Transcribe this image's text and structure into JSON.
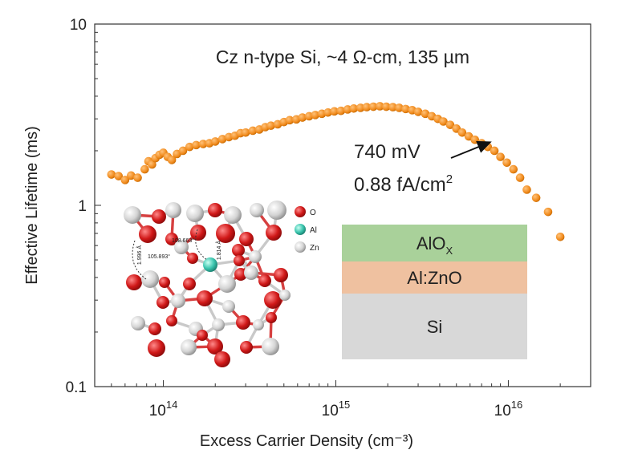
{
  "chart_data": {
    "type": "scatter",
    "title": "Cz n-type Si, ~4 Ω-cm, 135 µm",
    "xlabel": "Excess Carrier Density (cm⁻³)",
    "ylabel": "Effective Lifetime (ms)",
    "x_scale": "log",
    "y_scale": "log",
    "xlim": [
      40000000000000.0,
      3e+16
    ],
    "ylim": [
      0.1,
      10
    ],
    "x_ticks": [
      {
        "value": 100000000000000.0,
        "base": "10",
        "exp": "14"
      },
      {
        "value": 1000000000000000.0,
        "base": "10",
        "exp": "15"
      },
      {
        "value": 1e+16,
        "base": "10",
        "exp": "16"
      }
    ],
    "y_ticks": [
      {
        "value": 0.1,
        "label": "0.1"
      },
      {
        "value": 1,
        "label": "1"
      },
      {
        "value": 10,
        "label": "10"
      }
    ],
    "marker_color": "#f08a1c",
    "annotation": {
      "line1": "740 mV",
      "line2": "0.88 fA/cm",
      "line2_sup": "2",
      "arrow_target": [
        8200000000000000.0,
        2.3
      ]
    },
    "series": [
      {
        "x": [
          50000000000000.0,
          55000000000000.0,
          60000000000000.0,
          65000000000000.0,
          71000000000000.0,
          78000000000000.0,
          82000000000000.0,
          86000000000000.0,
          90000000000000.0,
          95000000000000.0,
          100000000000000.0,
          106000000000000.0,
          112000000000000.0,
          120000000000000.0,
          130000000000000.0,
          142000000000000.0,
          155000000000000.0,
          170000000000000.0,
          185000000000000.0,
          200000000000000.0,
          220000000000000.0,
          240000000000000.0,
          260000000000000.0,
          280000000000000.0,
          300000000000000.0,
          330000000000000.0,
          360000000000000.0,
          390000000000000.0,
          420000000000000.0,
          460000000000000.0,
          500000000000000.0,
          540000000000000.0,
          590000000000000.0,
          640000000000000.0,
          700000000000000.0,
          760000000000000.0,
          830000000000000.0,
          900000000000000.0,
          980000000000000.0,
          1070000000000000.0,
          1170000000000000.0,
          1270000000000000.0,
          1390000000000000.0,
          1510000000000000.0,
          1650000000000000.0,
          1800000000000000.0,
          1960000000000000.0,
          2140000000000000.0,
          2330000000000000.0,
          2540000000000000.0,
          2770000000000000.0,
          3000000000000000.0,
          3300000000000000.0,
          3600000000000000.0,
          3900000000000000.0,
          4200000000000000.0,
          4600000000000000.0,
          5000000000000000.0,
          5400000000000000.0,
          5900000000000000.0,
          6400000000000000.0,
          7000000000000000.0,
          7600000000000000.0,
          8300000000000000.0,
          9000000000000000.0,
          9800000000000000.0,
          1.07e+16,
          1.17e+16,
          1.28e+16,
          1.45e+16,
          1.7e+16,
          2e+16
        ],
        "y": [
          1.48,
          1.45,
          1.38,
          1.46,
          1.42,
          1.58,
          1.75,
          1.68,
          1.82,
          1.9,
          1.95,
          1.85,
          1.78,
          1.92,
          2.0,
          2.1,
          2.15,
          2.18,
          2.2,
          2.25,
          2.32,
          2.38,
          2.42,
          2.5,
          2.52,
          2.58,
          2.62,
          2.7,
          2.75,
          2.8,
          2.88,
          2.95,
          2.98,
          3.05,
          3.1,
          3.15,
          3.2,
          3.25,
          3.3,
          3.32,
          3.38,
          3.42,
          3.45,
          3.48,
          3.5,
          3.52,
          3.5,
          3.48,
          3.45,
          3.4,
          3.35,
          3.28,
          3.2,
          3.1,
          3.0,
          2.9,
          2.78,
          2.65,
          2.52,
          2.4,
          2.3,
          2.2,
          2.1,
          2.0,
          1.85,
          1.72,
          1.58,
          1.42,
          1.22,
          1.1,
          0.92,
          0.67
        ]
      }
    ]
  },
  "inset_structure": {
    "legend": [
      {
        "label": "O",
        "color": "#d92020"
      },
      {
        "label": "Al",
        "color": "#3cc6b0"
      },
      {
        "label": "Zn",
        "color": "#d6d6d6"
      }
    ],
    "measurements": [
      "1.996 Å",
      "105.893°",
      "108.663°",
      "1.814 Å"
    ]
  },
  "inset_stack": {
    "layers": [
      {
        "label": "AlO",
        "sub": "X",
        "color": "#a9d19a"
      },
      {
        "label": "Al:ZnO",
        "sub": "",
        "color": "#efc1a0"
      },
      {
        "label": "Si",
        "sub": "",
        "color": "#d8d8d8"
      }
    ]
  }
}
